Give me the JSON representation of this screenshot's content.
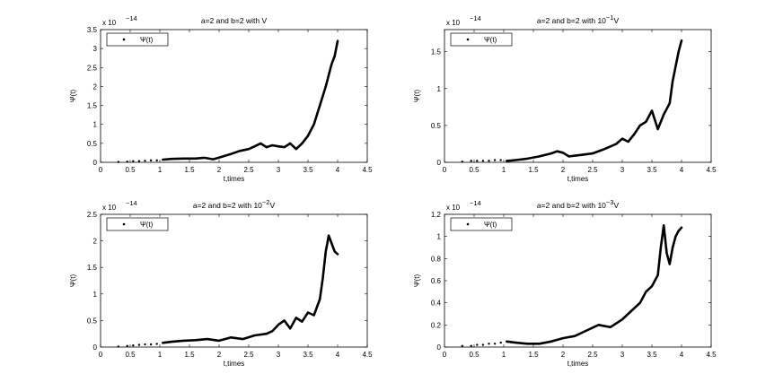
{
  "chart_data": [
    {
      "type": "line",
      "title": "a=2 and b=2 with V",
      "title_parts": [
        "a=2 and b=2 with V",
        "",
        ""
      ],
      "xlabel": "t,times",
      "ylabel": "Ψ(t)",
      "y_exponent_label": "x 10",
      "y_exponent": "−14",
      "legend": "Ψ(t)",
      "legend_position": "top-left",
      "xlim": [
        0,
        4.5
      ],
      "ylim": [
        0,
        3.5
      ],
      "x_ticks": [
        "0",
        "0.5",
        "1",
        "1.5",
        "2",
        "2.5",
        "3",
        "3.5",
        "4",
        "4.5"
      ],
      "y_ticks": [
        "0",
        "0.5",
        "1",
        "1.5",
        "2",
        "2.5",
        "3",
        "3.5"
      ],
      "series": [
        {
          "x": [
            0.3,
            0.45,
            0.55,
            0.65,
            0.75,
            0.85,
            0.95,
            1.05,
            1.2,
            1.4,
            1.6,
            1.75,
            1.9,
            2.05,
            2.2,
            2.35,
            2.5,
            2.6,
            2.7,
            2.8,
            2.9,
            3.0,
            3.1,
            3.2,
            3.3,
            3.4,
            3.5,
            3.6,
            3.7,
            3.8,
            3.85,
            3.9,
            3.95,
            4.0
          ],
          "y": [
            0.01,
            0.02,
            0.03,
            0.03,
            0.04,
            0.05,
            0.05,
            0.07,
            0.09,
            0.1,
            0.1,
            0.12,
            0.08,
            0.15,
            0.22,
            0.3,
            0.35,
            0.42,
            0.5,
            0.4,
            0.45,
            0.42,
            0.4,
            0.5,
            0.35,
            0.5,
            0.7,
            1.0,
            1.5,
            2.0,
            2.3,
            2.6,
            2.8,
            3.2
          ]
        }
      ]
    },
    {
      "type": "line",
      "title": "a=2 and b=2 with 10−1V",
      "title_parts": [
        "a=2 and b=2 with 10",
        "−1",
        "V"
      ],
      "xlabel": "t,times",
      "ylabel": "Ψ(t)",
      "y_exponent_label": "x 10",
      "y_exponent": "−14",
      "legend": "Ψ(t)",
      "legend_position": "top-left",
      "xlim": [
        0,
        4.5
      ],
      "ylim": [
        0,
        1.8
      ],
      "x_ticks": [
        "0",
        "0.5",
        "1",
        "1.5",
        "2",
        "2.5",
        "3",
        "3.5",
        "4",
        "4.5"
      ],
      "y_ticks": [
        "0",
        "0.5",
        "1",
        "1.5"
      ],
      "series": [
        {
          "x": [
            0.3,
            0.45,
            0.55,
            0.65,
            0.75,
            0.85,
            0.95,
            1.05,
            1.2,
            1.4,
            1.6,
            1.8,
            1.9,
            2.0,
            2.1,
            2.3,
            2.5,
            2.7,
            2.9,
            3.0,
            3.1,
            3.2,
            3.3,
            3.4,
            3.5,
            3.6,
            3.7,
            3.8,
            3.85,
            3.9,
            3.95,
            4.0
          ],
          "y": [
            0.01,
            0.02,
            0.02,
            0.02,
            0.02,
            0.03,
            0.03,
            0.02,
            0.03,
            0.05,
            0.08,
            0.12,
            0.15,
            0.13,
            0.08,
            0.1,
            0.12,
            0.18,
            0.25,
            0.32,
            0.28,
            0.38,
            0.5,
            0.55,
            0.7,
            0.45,
            0.65,
            0.8,
            1.1,
            1.3,
            1.5,
            1.65
          ]
        }
      ]
    },
    {
      "type": "line",
      "title": "a=2 and b=2 with 10−2V",
      "title_parts": [
        "a=2 and b=2 with 10",
        "−2",
        "V"
      ],
      "xlabel": "t,times",
      "ylabel": "Ψ(t)",
      "y_exponent_label": "x 10",
      "y_exponent": "−14",
      "legend": "Ψ(t)",
      "legend_position": "top-left",
      "xlim": [
        0,
        4.5
      ],
      "ylim": [
        0,
        2.5
      ],
      "x_ticks": [
        "0",
        "0.5",
        "1",
        "1.5",
        "2",
        "2.5",
        "3",
        "3.5",
        "4",
        "4.5"
      ],
      "y_ticks": [
        "0",
        "0.5",
        "1",
        "1.5",
        "2",
        "2.5"
      ],
      "series": [
        {
          "x": [
            0.3,
            0.45,
            0.55,
            0.65,
            0.75,
            0.85,
            0.95,
            1.05,
            1.2,
            1.4,
            1.6,
            1.8,
            2.0,
            2.2,
            2.4,
            2.6,
            2.8,
            2.9,
            3.0,
            3.1,
            3.2,
            3.3,
            3.4,
            3.5,
            3.6,
            3.7,
            3.75,
            3.8,
            3.85,
            3.9,
            3.95,
            4.0
          ],
          "y": [
            0.01,
            0.02,
            0.03,
            0.04,
            0.05,
            0.05,
            0.06,
            0.08,
            0.1,
            0.12,
            0.13,
            0.15,
            0.12,
            0.18,
            0.15,
            0.22,
            0.25,
            0.3,
            0.42,
            0.5,
            0.35,
            0.55,
            0.48,
            0.65,
            0.6,
            0.9,
            1.3,
            1.8,
            2.1,
            1.95,
            1.8,
            1.75
          ]
        }
      ]
    },
    {
      "type": "line",
      "title": "a=2 and b=2 with 10−3V",
      "title_parts": [
        "a=2 and b=2 with 10",
        "−3",
        "V"
      ],
      "xlabel": "t,times",
      "ylabel": "Ψ(t)",
      "y_exponent_label": "x 10",
      "y_exponent": "−14",
      "legend": "Ψ(t)",
      "legend_position": "top-left",
      "xlim": [
        0,
        4.5
      ],
      "ylim": [
        0,
        1.2
      ],
      "x_ticks": [
        "0",
        "0.5",
        "1",
        "1.5",
        "2",
        "2.5",
        "3",
        "3.5",
        "4",
        "4.5"
      ],
      "y_ticks": [
        "0",
        "0.2",
        "0.4",
        "0.6",
        "0.8",
        "1",
        "1.2"
      ],
      "series": [
        {
          "x": [
            0.3,
            0.45,
            0.55,
            0.65,
            0.75,
            0.85,
            0.95,
            1.05,
            1.2,
            1.4,
            1.6,
            1.8,
            2.0,
            2.2,
            2.4,
            2.6,
            2.8,
            3.0,
            3.1,
            3.2,
            3.3,
            3.4,
            3.5,
            3.6,
            3.65,
            3.7,
            3.75,
            3.8,
            3.85,
            3.9,
            3.95,
            4.0
          ],
          "y": [
            0.01,
            0.01,
            0.02,
            0.02,
            0.03,
            0.03,
            0.04,
            0.05,
            0.04,
            0.03,
            0.03,
            0.05,
            0.08,
            0.1,
            0.15,
            0.2,
            0.18,
            0.25,
            0.3,
            0.35,
            0.4,
            0.5,
            0.55,
            0.65,
            0.9,
            1.1,
            0.85,
            0.75,
            0.9,
            1.0,
            1.05,
            1.08
          ]
        }
      ]
    }
  ]
}
